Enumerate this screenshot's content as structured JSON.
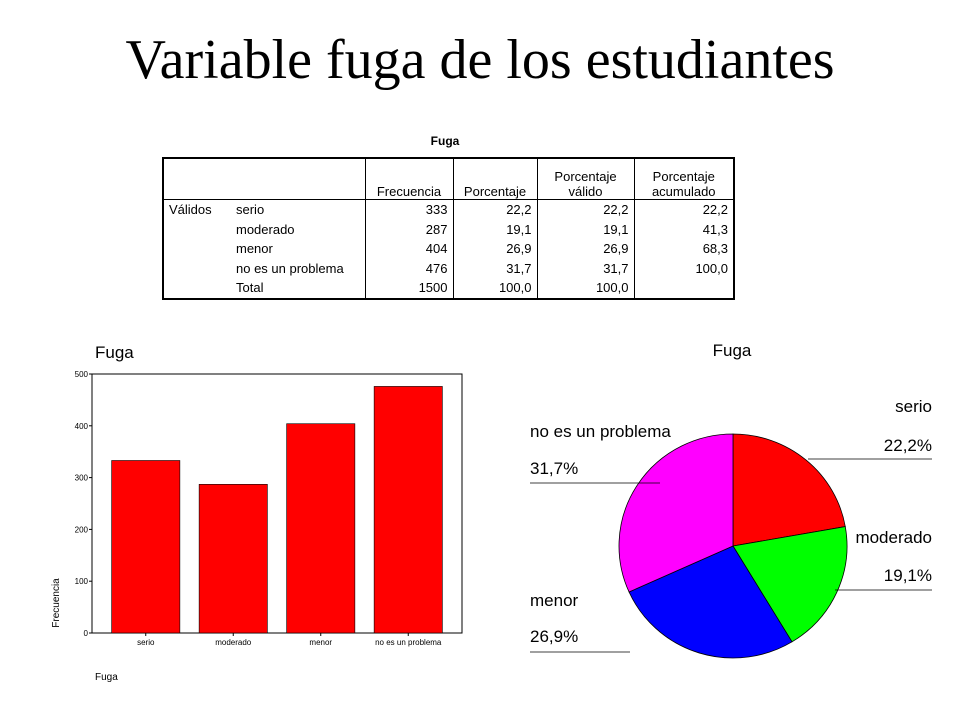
{
  "slide": {
    "title": "Variable fuga de los estudiantes"
  },
  "table": {
    "caption": "Fuga",
    "headers": [
      "Frecuencia",
      "Porcentaje",
      "Porcentaje válido",
      "Porcentaje acumulado"
    ],
    "header_lines": [
      [
        "Frecuencia"
      ],
      [
        "Porcentaje"
      ],
      [
        "Porcentaje",
        "válido"
      ],
      [
        "Porcentaje",
        "acumulado"
      ]
    ],
    "group_label": "Válidos",
    "rows": [
      {
        "label": "serio",
        "frecuencia": "333",
        "porcentaje": "22,2",
        "valido": "22,2",
        "acumulado": "22,2"
      },
      {
        "label": "moderado",
        "frecuencia": "287",
        "porcentaje": "19,1",
        "valido": "19,1",
        "acumulado": "41,3"
      },
      {
        "label": "menor",
        "frecuencia": "404",
        "porcentaje": "26,9",
        "valido": "26,9",
        "acumulado": "68,3"
      },
      {
        "label": "no es un problema",
        "frecuencia": "476",
        "porcentaje": "31,7",
        "valido": "31,7",
        "acumulado": "100,0"
      },
      {
        "label": "Total",
        "frecuencia": "1500",
        "porcentaje": "100,0",
        "valido": "100,0",
        "acumulado": ""
      }
    ]
  },
  "chart_data": [
    {
      "type": "bar",
      "title": "Fuga",
      "xlabel": "Fuga",
      "ylabel": "Frecuencia",
      "categories": [
        "serio",
        "moderado",
        "menor",
        "no es un problema"
      ],
      "values": [
        333,
        287,
        404,
        476
      ],
      "ylim": [
        0,
        500
      ],
      "yticks": [
        0,
        100,
        200,
        300,
        400,
        500
      ],
      "grid": false,
      "bar_color": "#ff0000"
    },
    {
      "type": "pie",
      "title": "Fuga",
      "slices": [
        {
          "label": "serio",
          "value": 22.2,
          "value_label": "22,2%",
          "color": "#ff0000"
        },
        {
          "label": "moderado",
          "value": 19.1,
          "value_label": "19,1%",
          "color": "#00ff00"
        },
        {
          "label": "menor",
          "value": 26.9,
          "value_label": "26,9%",
          "color": "#0000ff"
        },
        {
          "label": "no es un problema",
          "value": 31.7,
          "value_label": "31,7%",
          "color": "#ff00ff"
        }
      ]
    }
  ]
}
